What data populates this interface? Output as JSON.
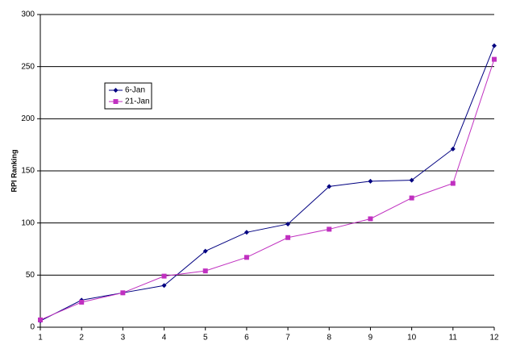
{
  "chart_data": {
    "type": "line",
    "y_label": "RPI Ranking",
    "x": [
      1,
      2,
      3,
      4,
      5,
      6,
      7,
      8,
      9,
      10,
      11,
      12
    ],
    "series": [
      {
        "name": "6-Jan",
        "color": "#000080",
        "marker": "diamond",
        "values": [
          6,
          26,
          33,
          40,
          73,
          91,
          99,
          135,
          140,
          141,
          171,
          270
        ]
      },
      {
        "name": "21-Jan",
        "color": "#c030c0",
        "marker": "square",
        "values": [
          7,
          24,
          33,
          49,
          54,
          67,
          86,
          94,
          104,
          124,
          138,
          257
        ]
      }
    ],
    "xlim": [
      1,
      12
    ],
    "xticks": [
      1,
      2,
      3,
      4,
      5,
      6,
      7,
      8,
      9,
      10,
      11,
      12
    ],
    "ylim": [
      0,
      300
    ],
    "yticks": [
      0,
      50,
      100,
      150,
      200,
      250,
      300
    ],
    "grid": true,
    "legend": "upper left"
  }
}
